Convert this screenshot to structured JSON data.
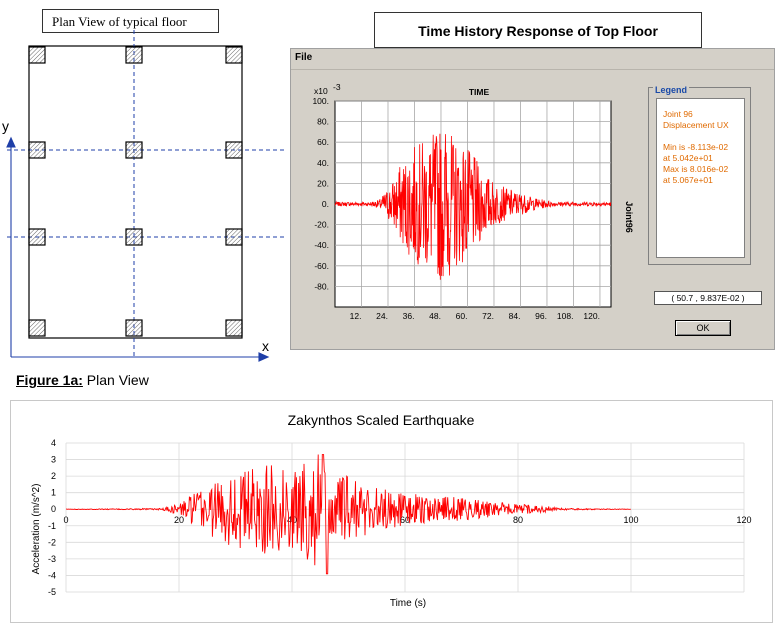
{
  "plan": {
    "title": "Plan View of typical floor",
    "axis_y": "y",
    "axis_x": "x"
  },
  "time_history": {
    "title": "Time History Response of Top Floor",
    "menu": [
      "File"
    ],
    "plot_title": "TIME",
    "exponent_label": "x10",
    "exponent_value": "-3",
    "side_label": "Joint96",
    "legend": {
      "title": "Legend",
      "lines": [
        "Joint 96",
        "Displacement  UX",
        "",
        "Min is -8.113e-02",
        "at 5.042e+01",
        "Max is 8.016e-02",
        "at 5.067e+01"
      ]
    },
    "coordinate_readout": "( 50.7 , 9.837E-02 )",
    "ok_label": "OK"
  },
  "caption": {
    "label": "Figure 1a:",
    "text": " Plan View"
  },
  "colors": {
    "signal": "#ff0000",
    "legend_text": "#e06a00",
    "legend_title": "#1a4aa8",
    "grid_dashed": "#1f3fa8",
    "window_bg": "#d4d0c8"
  },
  "chart_data": [
    {
      "type": "line",
      "title": "TIME",
      "xlabel": "",
      "ylabel": "",
      "x_ticks": [
        "12.",
        "24.",
        "36.",
        "48.",
        "60.",
        "72.",
        "84.",
        "96.",
        "108.",
        "120."
      ],
      "y_ticks": [
        "100.",
        "80.",
        "60.",
        "40.",
        "20.",
        "0.",
        "-20.",
        "-40.",
        "-60.",
        "-80."
      ],
      "xlim": [
        0,
        125
      ],
      "ylim": [
        -100,
        100
      ],
      "y_scale_note": "x10 -3",
      "series": [
        {
          "name": "Joint 96 Displacement UX",
          "envelope": [
            [
              0,
              2
            ],
            [
              15,
              2
            ],
            [
              20,
              4
            ],
            [
              25,
              18
            ],
            [
              30,
              40
            ],
            [
              35,
              55
            ],
            [
              40,
              62
            ],
            [
              45,
              70
            ],
            [
              50,
              80
            ],
            [
              52,
              70
            ],
            [
              55,
              62
            ],
            [
              60,
              55
            ],
            [
              65,
              40
            ],
            [
              70,
              25
            ],
            [
              75,
              18
            ],
            [
              80,
              14
            ],
            [
              85,
              10
            ],
            [
              90,
              6
            ],
            [
              95,
              4
            ],
            [
              100,
              2
            ],
            [
              125,
              2
            ]
          ]
        }
      ],
      "grid": true
    },
    {
      "type": "line",
      "title": "Zakynthos Scaled Earthquake",
      "xlabel": "Time (s)",
      "ylabel": "Acceleration (m/s^2)",
      "x_ticks": [
        "0",
        "20",
        "40",
        "60",
        "80",
        "100",
        "120"
      ],
      "y_ticks": [
        "4",
        "3",
        "2",
        "1",
        "0",
        "-1",
        "-2",
        "-3",
        "-4",
        "-5"
      ],
      "xlim": [
        0,
        120
      ],
      "ylim": [
        -5,
        4
      ],
      "series": [
        {
          "name": "",
          "envelope": [
            [
              0,
              0.01
            ],
            [
              17,
              0.05
            ],
            [
              20,
              0.4
            ],
            [
              25,
              1.5
            ],
            [
              30,
              2.4
            ],
            [
              35,
              2.7
            ],
            [
              40,
              2.6
            ],
            [
              45,
              3.6
            ],
            [
              47,
              2.2
            ],
            [
              50,
              2.0
            ],
            [
              55,
              1.4
            ],
            [
              60,
              1.0
            ],
            [
              65,
              0.8
            ],
            [
              70,
              0.7
            ],
            [
              75,
              0.5
            ],
            [
              80,
              0.3
            ],
            [
              85,
              0.2
            ],
            [
              88,
              0.05
            ],
            [
              100,
              0.01
            ]
          ]
        }
      ],
      "grid": true
    }
  ]
}
